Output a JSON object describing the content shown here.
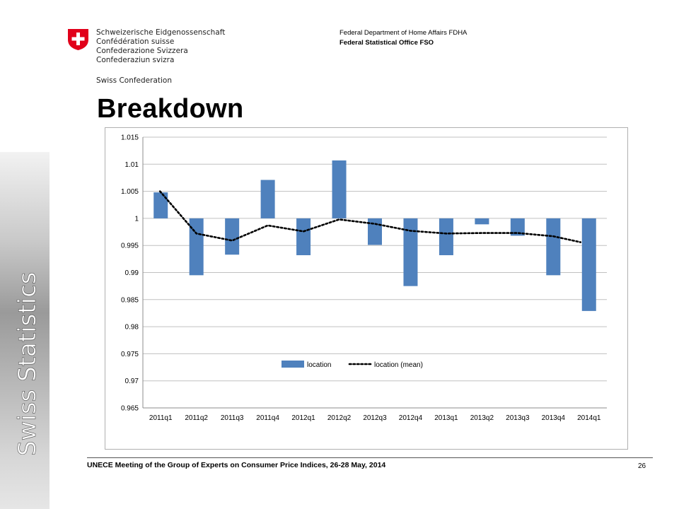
{
  "header": {
    "confederation_lines": [
      "Schweizerische Eidgenossenschaft",
      "Confédération suisse",
      "Confederazione Svizzera",
      "Confederaziun svizra"
    ],
    "confederation_en": "Swiss Confederation",
    "department": "Federal Department of Home Affairs FDHA",
    "office": "Federal Statistical Office FSO"
  },
  "side_label": "Swiss Statistics",
  "slide_title": "Breakdown",
  "footer": {
    "text": "UNECE Meeting of the Group of Experts on Consumer Price Indices, 26-28 May, 2014",
    "page_number": "26"
  },
  "colors": {
    "bar": "#4f81bd",
    "mean_line": "#000000",
    "logo_red": "#e1001a"
  },
  "chart_data": {
    "type": "bar",
    "categories": [
      "2011q1",
      "2011q2",
      "2011q3",
      "2011q4",
      "2012q1",
      "2012q2",
      "2012q3",
      "2012q4",
      "2013q1",
      "2013q2",
      "2013q3",
      "2013q4",
      "2014q1"
    ],
    "baseline": 1,
    "series": [
      {
        "name": "location",
        "type": "bar",
        "values": [
          1.0048,
          0.9895,
          0.9933,
          1.0071,
          0.9932,
          1.0107,
          0.9951,
          0.9875,
          0.9932,
          0.9989,
          0.9968,
          0.9895,
          0.9829
        ]
      },
      {
        "name": "location (mean)",
        "type": "line",
        "style": "dotted",
        "values": [
          1.005,
          0.9972,
          0.9959,
          0.9987,
          0.9976,
          0.9998,
          0.999,
          0.9977,
          0.9972,
          0.9973,
          0.9973,
          0.9967,
          0.9956
        ]
      }
    ],
    "yticks": [
      "1.015",
      "1.01",
      "1.005",
      "1",
      "0.995",
      "0.99",
      "0.985",
      "0.98",
      "0.975",
      "0.97",
      "0.965"
    ],
    "ylim": [
      0.965,
      1.015
    ],
    "grid": true,
    "legend_position": "bottom-center"
  }
}
